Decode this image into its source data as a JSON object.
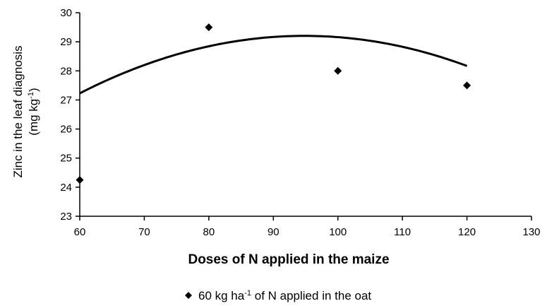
{
  "chart_data": {
    "type": "scatter",
    "xlabel": "Doses of N applied in the maize",
    "ylabel": {
      "line1": "Zinc in the leaf diagnosis",
      "line2_pre": "(mg kg",
      "line2_sup": "-1",
      "line2_post": ")"
    },
    "xlim": [
      60,
      130
    ],
    "ylim": [
      23,
      30
    ],
    "x_ticks": [
      60,
      70,
      80,
      90,
      100,
      110,
      120,
      130
    ],
    "y_ticks": [
      23,
      24,
      25,
      26,
      27,
      28,
      29,
      30
    ],
    "grid": false,
    "legend_position": "bottom",
    "legend": {
      "text_pre": "60 kg ha",
      "text_sup": "-1",
      "text_post": " of N applied in the oat"
    },
    "series": [
      {
        "marker": "diamond",
        "x": [
          60,
          80,
          100,
          120
        ],
        "y": [
          24.25,
          29.5,
          28.0,
          27.5
        ]
      }
    ],
    "trendline": {
      "type": "quadratic",
      "x_range": [
        60,
        120
      ],
      "coefficients": [
        -0.00163,
        0.3091,
        14.55
      ]
    },
    "colors": {
      "marks": "#000000",
      "axis": "#000000"
    }
  }
}
